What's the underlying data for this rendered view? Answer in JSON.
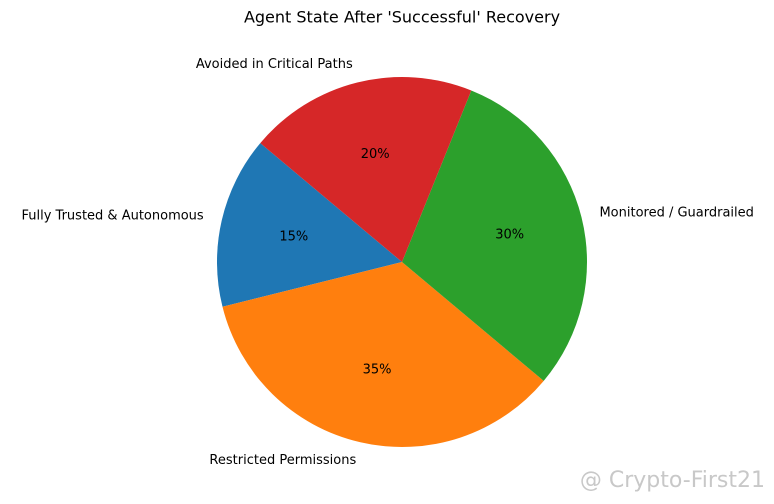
{
  "chart_data": {
    "type": "pie",
    "title": "Agent State After 'Successful' Recovery",
    "categories": [
      "Fully Trusted & Autonomous",
      "Restricted Permissions",
      "Monitored / Guardrailed",
      "Avoided in Critical Paths"
    ],
    "values": [
      15,
      35,
      30,
      20
    ],
    "value_labels": [
      "15%",
      "35%",
      "30%",
      "20%"
    ],
    "colors": [
      "#1f77b4",
      "#ff7f0e",
      "#2ca02c",
      "#d62728"
    ],
    "start_angle": 140
  },
  "watermark": "@ Crypto-First21"
}
